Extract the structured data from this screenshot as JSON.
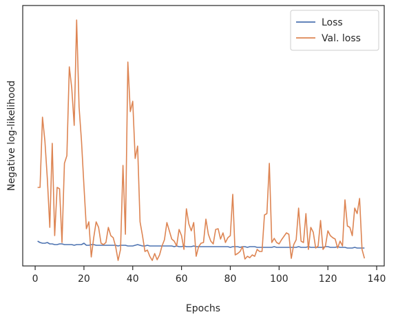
{
  "chart_data": {
    "type": "line",
    "x_label": "Epochs",
    "y_label": "Negative log-likelihood",
    "x": [
      1,
      2,
      3,
      4,
      5,
      6,
      7,
      8,
      9,
      10,
      11,
      12,
      13,
      14,
      15,
      16,
      17,
      18,
      19,
      20,
      21,
      22,
      23,
      24,
      25,
      26,
      27,
      28,
      29,
      30,
      31,
      32,
      33,
      34,
      35,
      36,
      37,
      38,
      39,
      40,
      41,
      42,
      43,
      44,
      45,
      46,
      47,
      48,
      49,
      50,
      51,
      52,
      53,
      54,
      55,
      56,
      57,
      58,
      59,
      60,
      61,
      62,
      63,
      64,
      65,
      66,
      67,
      68,
      69,
      70,
      71,
      72,
      73,
      74,
      75,
      76,
      77,
      78,
      79,
      80,
      81,
      82,
      83,
      84,
      85,
      86,
      87,
      88,
      89,
      90,
      91,
      92,
      93,
      94,
      95,
      96,
      97,
      98,
      99,
      100,
      101,
      102,
      103,
      104,
      105,
      106,
      107,
      108,
      109,
      110,
      111,
      112,
      113,
      114,
      115,
      116,
      117,
      118,
      119,
      120,
      121,
      122,
      123,
      124,
      125,
      126,
      127,
      128,
      129,
      130,
      131,
      132,
      133,
      134,
      135
    ],
    "series": [
      {
        "name": "Loss",
        "color": "#4c72b0",
        "values": [
          36,
          34,
          33,
          33,
          34,
          32,
          32,
          31,
          31,
          32,
          32,
          31,
          31,
          31,
          31,
          30,
          31,
          31,
          31,
          33,
          30,
          30,
          31,
          31,
          30,
          30,
          30,
          30,
          30,
          30,
          30,
          30,
          30,
          29,
          30,
          30,
          30,
          29,
          29,
          29,
          30,
          31,
          30,
          29,
          29,
          30,
          29,
          29,
          29,
          29,
          29,
          29,
          29,
          29,
          29,
          29,
          28,
          29,
          28,
          28,
          29,
          28,
          28,
          28,
          29,
          28,
          28,
          28,
          28,
          28,
          28,
          28,
          28,
          28,
          28,
          28,
          28,
          28,
          28,
          27,
          28,
          28,
          28,
          27,
          28,
          28,
          27,
          28,
          28,
          28,
          27,
          27,
          27,
          27,
          27,
          27,
          27,
          28,
          27,
          27,
          27,
          27,
          27,
          27,
          27,
          27,
          27,
          28,
          27,
          27,
          27,
          28,
          27,
          27,
          27,
          27,
          27,
          27,
          28,
          28,
          27,
          27,
          27,
          28,
          27,
          27,
          27,
          26,
          26,
          26,
          27,
          26,
          26,
          26,
          26
        ]
      },
      {
        "name": "Val. loss",
        "color": "#dd8452",
        "values": [
          114,
          114,
          216,
          181,
          126,
          56,
          178,
          44,
          114,
          112,
          34,
          149,
          160,
          289,
          258,
          204,
          357,
          231,
          181,
          116,
          54,
          64,
          13,
          41,
          64,
          56,
          33,
          31,
          34,
          56,
          44,
          41,
          28,
          8,
          24,
          146,
          46,
          296,
          224,
          239,
          156,
          174,
          64,
          44,
          21,
          23,
          14,
          8,
          18,
          9,
          16,
          29,
          38,
          63,
          51,
          39,
          36,
          29,
          53,
          44,
          24,
          83,
          61,
          51,
          63,
          14,
          28,
          33,
          34,
          68,
          46,
          36,
          32,
          53,
          54,
          39,
          48,
          34,
          41,
          44,
          104,
          16,
          18,
          21,
          28,
          10,
          14,
          12,
          16,
          14,
          24,
          21,
          21,
          74,
          76,
          149,
          34,
          40,
          34,
          32,
          38,
          43,
          48,
          46,
          11,
          31,
          38,
          84,
          36,
          34,
          76,
          24,
          56,
          49,
          26,
          29,
          66,
          24,
          29,
          51,
          44,
          41,
          39,
          26,
          36,
          29,
          96,
          58,
          56,
          44,
          84,
          76,
          98,
          24,
          11
        ]
      }
    ],
    "xlim": [
      -5.1,
      143.1
    ],
    "ylim": [
      0,
      378
    ],
    "xticks": [
      0,
      20,
      40,
      60,
      80,
      100,
      120,
      140
    ],
    "legend": "upper right"
  }
}
